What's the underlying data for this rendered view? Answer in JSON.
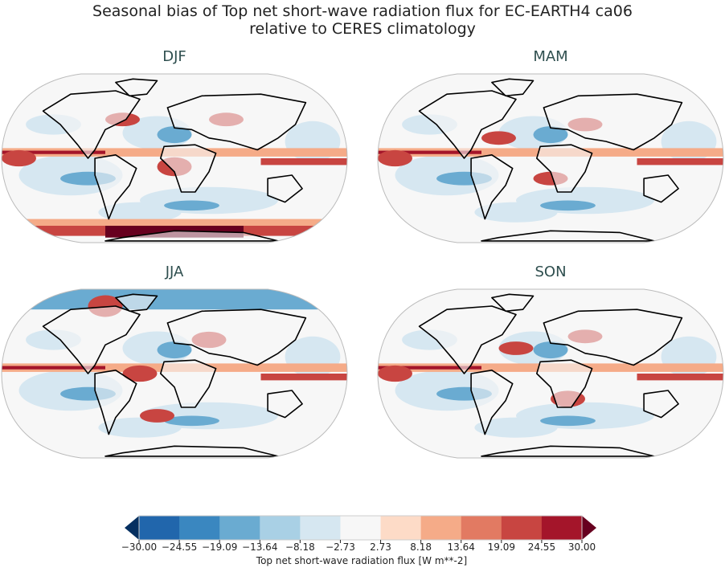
{
  "title_line1": "Seasonal bias of Top net short-wave radiation flux for EC-EARTH4 ca06",
  "title_line2": "relative to CERES climatology",
  "panels": [
    {
      "label": "DJF"
    },
    {
      "label": "MAM"
    },
    {
      "label": "JJA"
    },
    {
      "label": "SON"
    }
  ],
  "colorbar": {
    "label": "Top net short-wave radiation flux [W m**-2]",
    "ticks": [
      "−30.00",
      "−24.55",
      "−19.09",
      "−13.64",
      "−8.18",
      "−2.73",
      "2.73",
      "8.18",
      "13.64",
      "19.09",
      "24.55",
      "30.00"
    ],
    "colors": [
      "#2166ac",
      "#3a87c0",
      "#6aabd1",
      "#a9d0e5",
      "#d6e7f1",
      "#f7f7f7",
      "#fddbc7",
      "#f5ab88",
      "#e27a62",
      "#c84541",
      "#a4152a"
    ],
    "under_color": "#053061",
    "over_color": "#67001f",
    "extend": "both"
  }
}
